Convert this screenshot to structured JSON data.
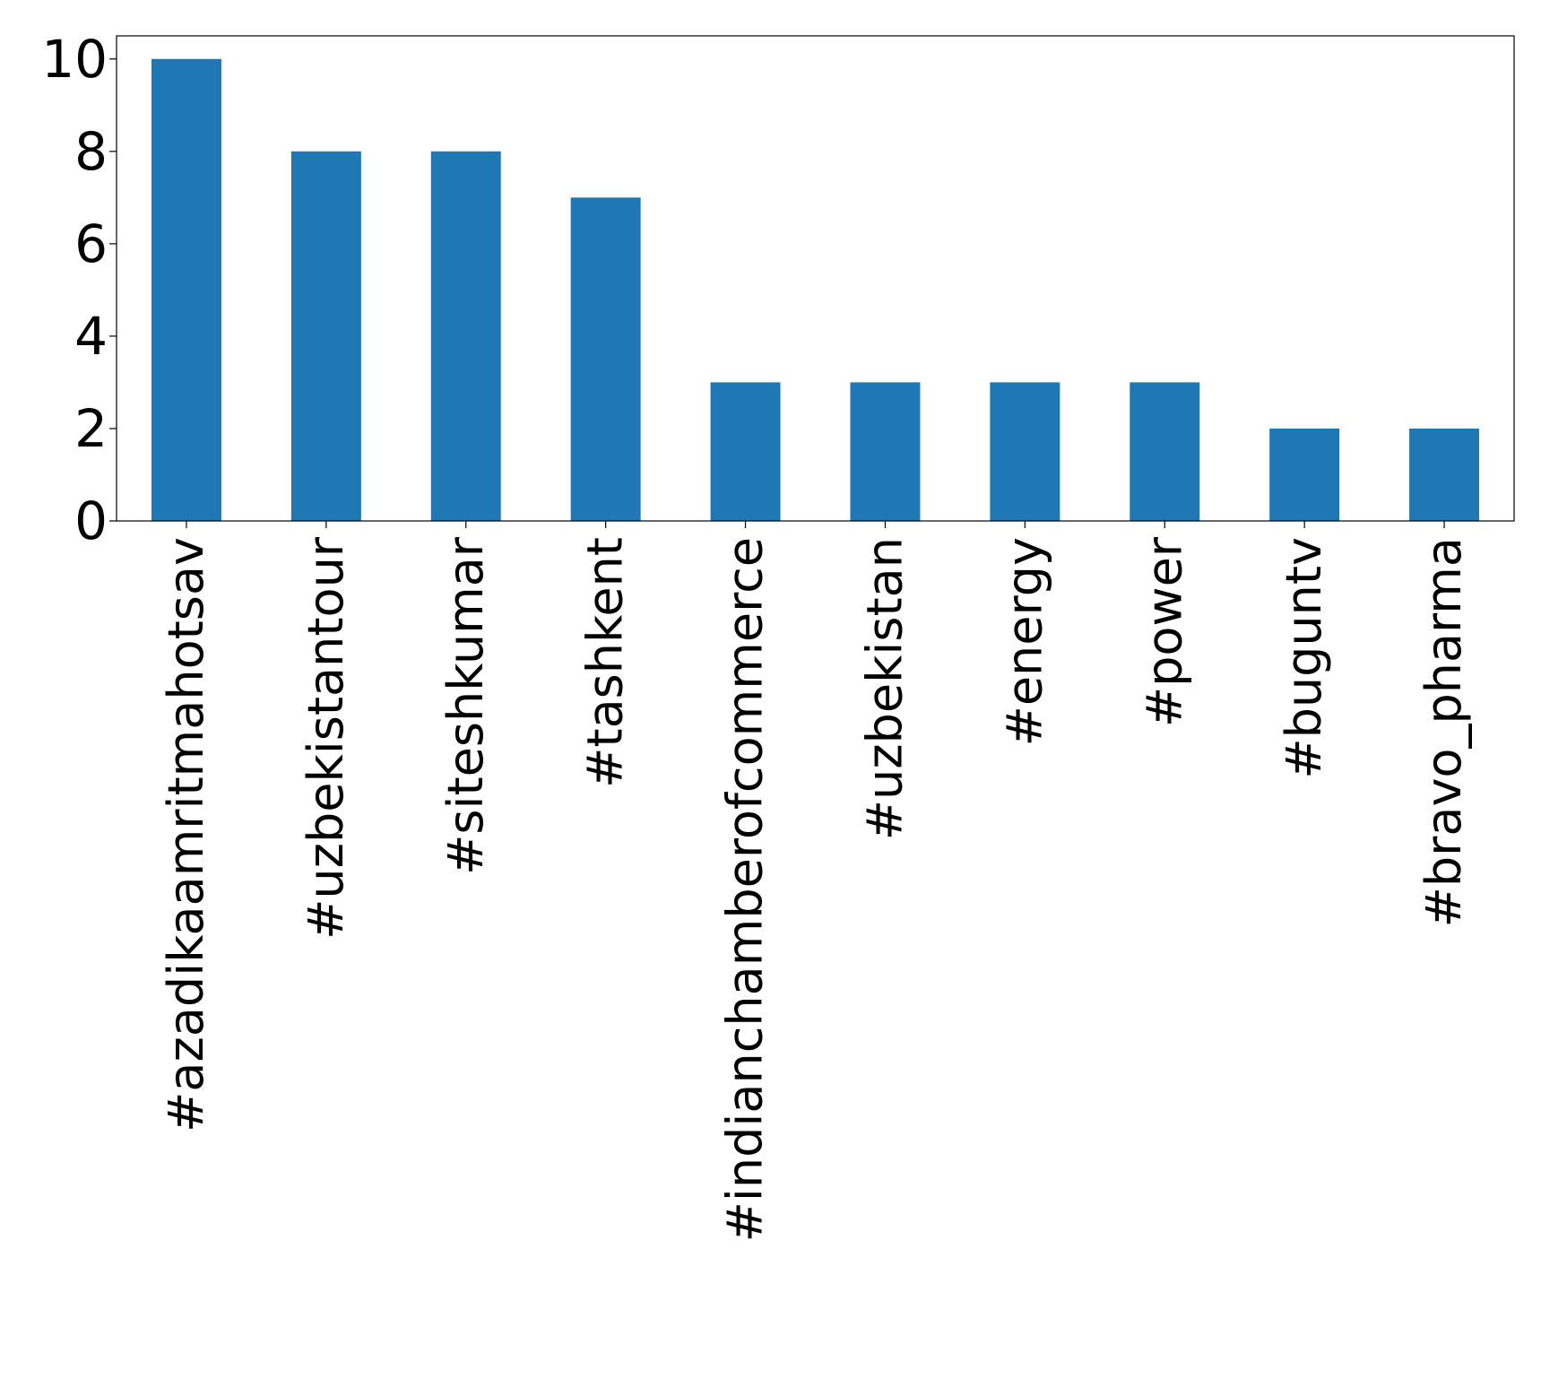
{
  "chart_data": {
    "type": "bar",
    "title": "",
    "xlabel": "",
    "ylabel": "",
    "categories": [
      "#azadikaamritmahotsav",
      "#uzbekistantour",
      "#siteshkumar",
      "#tashkent",
      "#indianchamberofcommerce",
      "#uzbekistan",
      "#energy",
      "#power",
      "#buguntv",
      "#bravo_pharma"
    ],
    "values": [
      10,
      8,
      8,
      7,
      3,
      3,
      3,
      3,
      2,
      2
    ],
    "ylim": [
      0,
      10.5
    ],
    "yticks": [
      0,
      2,
      4,
      6,
      8,
      10
    ],
    "bar_color": "#1f77b4",
    "grid": false,
    "legend": "none"
  }
}
